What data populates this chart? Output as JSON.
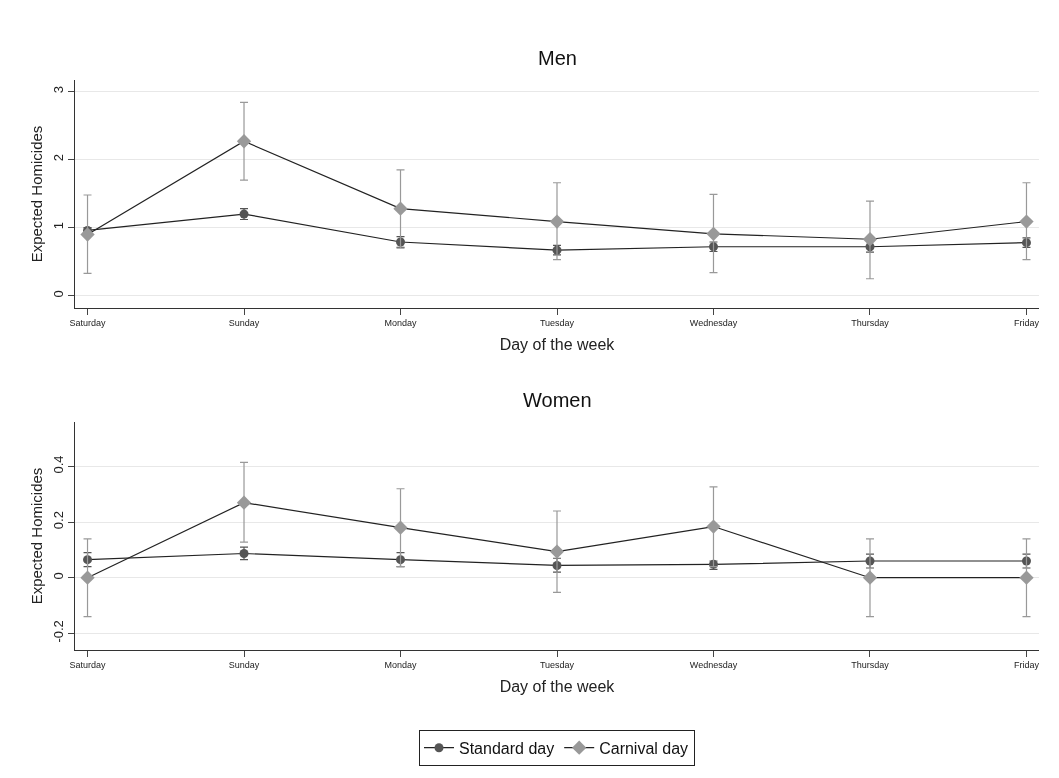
{
  "chart_data": [
    {
      "type": "line",
      "title": "Men",
      "xlabel": "Day of the week",
      "ylabel": "Expected Homicides",
      "categories": [
        "Saturday",
        "Sunday",
        "Monday",
        "Tuesday",
        "Wednesday",
        "Thursday",
        "Friday"
      ],
      "ylim": [
        -0.18,
        3.17
      ],
      "yticks": [
        0,
        1,
        2,
        3
      ],
      "grid": "y",
      "legend": "bottom",
      "series": [
        {
          "name": "Standard day",
          "color": "#555555",
          "marker": "circle",
          "values": [
            0.96,
            1.2,
            0.79,
            0.67,
            0.72,
            0.72,
            0.78
          ],
          "errors": [
            [
              0.93,
              1.0
            ],
            [
              1.12,
              1.28
            ],
            [
              0.71,
              0.87
            ],
            [
              0.6,
              0.74
            ],
            [
              0.65,
              0.79
            ],
            [
              0.64,
              0.8
            ],
            [
              0.71,
              0.85
            ]
          ]
        },
        {
          "name": "Carnival day",
          "color": "#999999",
          "marker": "diamond",
          "values": [
            0.9,
            2.27,
            1.28,
            1.09,
            0.91,
            0.83,
            1.09
          ],
          "errors": [
            [
              0.33,
              1.48
            ],
            [
              1.7,
              2.84
            ],
            [
              0.7,
              1.85
            ],
            [
              0.53,
              1.66
            ],
            [
              0.34,
              1.49
            ],
            [
              0.25,
              1.39
            ],
            [
              0.53,
              1.66
            ]
          ]
        }
      ]
    },
    {
      "type": "line",
      "title": "Women",
      "xlabel": "Day of the week",
      "ylabel": "Expected Homicides",
      "categories": [
        "Saturday",
        "Sunday",
        "Monday",
        "Tuesday",
        "Wednesday",
        "Thursday",
        "Friday"
      ],
      "ylim": [
        -0.26,
        0.56
      ],
      "yticks": [
        -0.2,
        0,
        0.2,
        0.4
      ],
      "grid": "y",
      "series": [
        {
          "color": "#555555",
          "marker": "circle",
          "values": [
            0.065,
            0.087,
            0.065,
            0.044,
            0.048,
            0.06,
            0.06
          ],
          "errors": [
            [
              0.04,
              0.09
            ],
            [
              0.065,
              0.11
            ],
            [
              0.04,
              0.09
            ],
            [
              0.02,
              0.07
            ],
            [
              0.03,
              0.06
            ],
            [
              0.035,
              0.085
            ],
            [
              0.035,
              0.085
            ]
          ]
        },
        {
          "color": "#999999",
          "marker": "diamond",
          "values": [
            0,
            0.27,
            0.18,
            0.094,
            0.184,
            0,
            0
          ],
          "errors": [
            [
              -0.14,
              0.14
            ],
            [
              0.128,
              0.415
            ],
            [
              0.04,
              0.32
            ],
            [
              -0.053,
              0.24
            ],
            [
              0.04,
              0.327
            ],
            [
              -0.14,
              0.14
            ],
            [
              -0.14,
              0.14
            ]
          ]
        }
      ]
    }
  ]
}
